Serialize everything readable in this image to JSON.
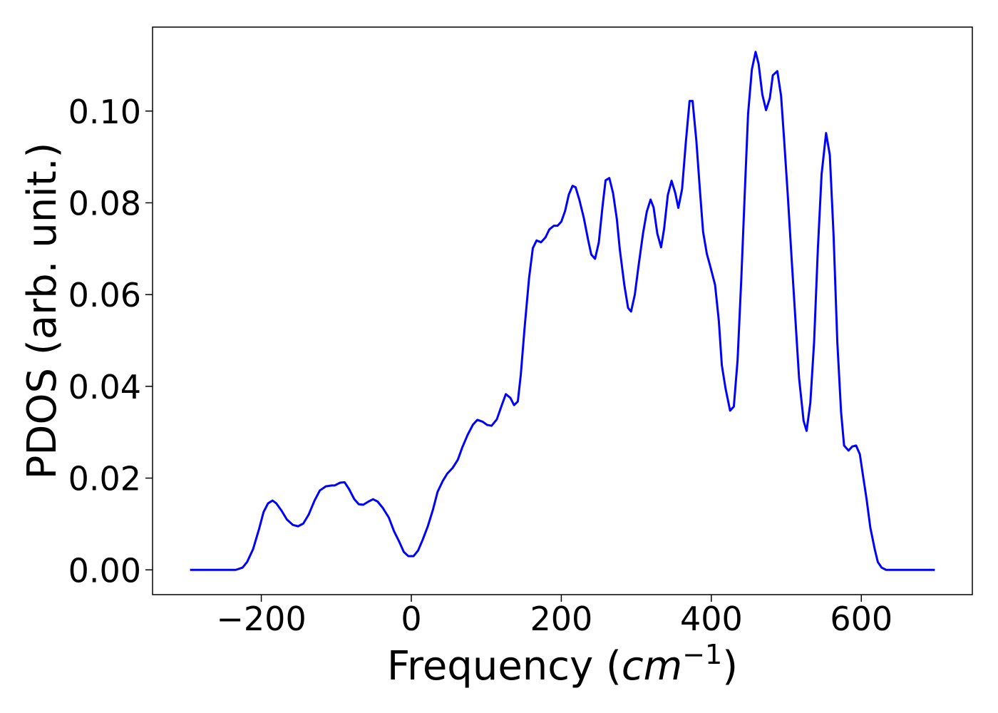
{
  "chart_data": {
    "type": "line",
    "xlabel": [
      "Frequency (",
      "cm",
      "−1",
      ")"
    ],
    "ylabel": "PDOS (arb. unit.)",
    "color": "#0000ff",
    "x": [
      -295,
      -234,
      -225,
      -219,
      -211,
      -203,
      -197,
      -191,
      -185,
      -180,
      -173,
      -166,
      -158,
      -151,
      -144,
      -137,
      -129,
      -122,
      -114,
      -106,
      -102,
      -95,
      -89,
      -83,
      -76,
      -70,
      -64,
      -57,
      -51,
      -45,
      -38,
      -30,
      -23,
      -16,
      -10,
      -4,
      3,
      9,
      15,
      22,
      29,
      35,
      42,
      48,
      55,
      62,
      68,
      75,
      82,
      88,
      95,
      101,
      107,
      114,
      120,
      126,
      132,
      137,
      142,
      146,
      151,
      157,
      162,
      167,
      173,
      179,
      184,
      190,
      195,
      200,
      205,
      210,
      215,
      219,
      224,
      230,
      236,
      240,
      245,
      250,
      255,
      259,
      264,
      269,
      274,
      278,
      284,
      289,
      293,
      298,
      303,
      309,
      314,
      319,
      323,
      328,
      333,
      337,
      342,
      347,
      352,
      356,
      361,
      366,
      371,
      375,
      380,
      385,
      389,
      394,
      399,
      405,
      410,
      414,
      419,
      425,
      430,
      435,
      440,
      445,
      449,
      454,
      459,
      463,
      468,
      473,
      478,
      482,
      488,
      493,
      497,
      502,
      507,
      512,
      517,
      523,
      527,
      532,
      537,
      542,
      547,
      553,
      558,
      563,
      568,
      573,
      577,
      583,
      588,
      593,
      598,
      602,
      607,
      612,
      618,
      622,
      627,
      633,
      698
    ],
    "values": [
      0,
      0,
      0.0005,
      0.0017,
      0.0045,
      0.0089,
      0.0126,
      0.0145,
      0.0151,
      0.0145,
      0.0129,
      0.011,
      0.0098,
      0.0095,
      0.0101,
      0.012,
      0.0151,
      0.0173,
      0.0182,
      0.0184,
      0.0184,
      0.019,
      0.0191,
      0.0176,
      0.0154,
      0.0143,
      0.0142,
      0.0149,
      0.0154,
      0.0149,
      0.0135,
      0.0114,
      0.0084,
      0.0061,
      0.0039,
      0.003,
      0.003,
      0.0042,
      0.0065,
      0.0095,
      0.0132,
      0.017,
      0.0194,
      0.021,
      0.0222,
      0.024,
      0.0267,
      0.0294,
      0.0316,
      0.0327,
      0.0323,
      0.0316,
      0.0314,
      0.0328,
      0.0356,
      0.0383,
      0.0375,
      0.0359,
      0.0367,
      0.0426,
      0.0527,
      0.0636,
      0.0701,
      0.0718,
      0.0714,
      0.0725,
      0.0742,
      0.075,
      0.075,
      0.0759,
      0.0782,
      0.0818,
      0.0837,
      0.0834,
      0.0807,
      0.0767,
      0.0717,
      0.0687,
      0.0678,
      0.0714,
      0.0793,
      0.0849,
      0.0854,
      0.0821,
      0.0765,
      0.0698,
      0.0621,
      0.0571,
      0.0563,
      0.06,
      0.0663,
      0.0734,
      0.0781,
      0.0807,
      0.079,
      0.0733,
      0.0703,
      0.0743,
      0.0817,
      0.0848,
      0.0821,
      0.0789,
      0.083,
      0.0932,
      0.1022,
      0.1022,
      0.0936,
      0.0823,
      0.0737,
      0.0689,
      0.0659,
      0.0621,
      0.0543,
      0.0446,
      0.0395,
      0.0347,
      0.0356,
      0.0457,
      0.0636,
      0.0838,
      0.0994,
      0.109,
      0.1129,
      0.1103,
      0.1036,
      0.1002,
      0.1028,
      0.1078,
      0.1087,
      0.1033,
      0.0939,
      0.0815,
      0.068,
      0.0549,
      0.0418,
      0.0325,
      0.0303,
      0.0364,
      0.0496,
      0.0698,
      0.0862,
      0.0952,
      0.0904,
      0.0729,
      0.0496,
      0.0344,
      0.0271,
      0.026,
      0.0269,
      0.0271,
      0.0252,
      0.0208,
      0.0154,
      0.0092,
      0.0044,
      0.0017,
      0.0005,
      0,
      0
    ],
    "xlim": [
      -345,
      748
    ],
    "ylim": [
      -0.0054,
      0.1183
    ],
    "xticks": [
      {
        "value": -200,
        "label": "−200"
      },
      0,
      200,
      400,
      600
    ],
    "yticks": [
      {
        "value": 0,
        "label": "0.00"
      },
      {
        "value": 0.02,
        "label": "0.02"
      },
      {
        "value": 0.04,
        "label": "0.04"
      },
      {
        "value": 0.06,
        "label": "0.06"
      },
      {
        "value": 0.08,
        "label": "0.08"
      },
      {
        "value": 0.1,
        "label": "0.10"
      }
    ]
  }
}
